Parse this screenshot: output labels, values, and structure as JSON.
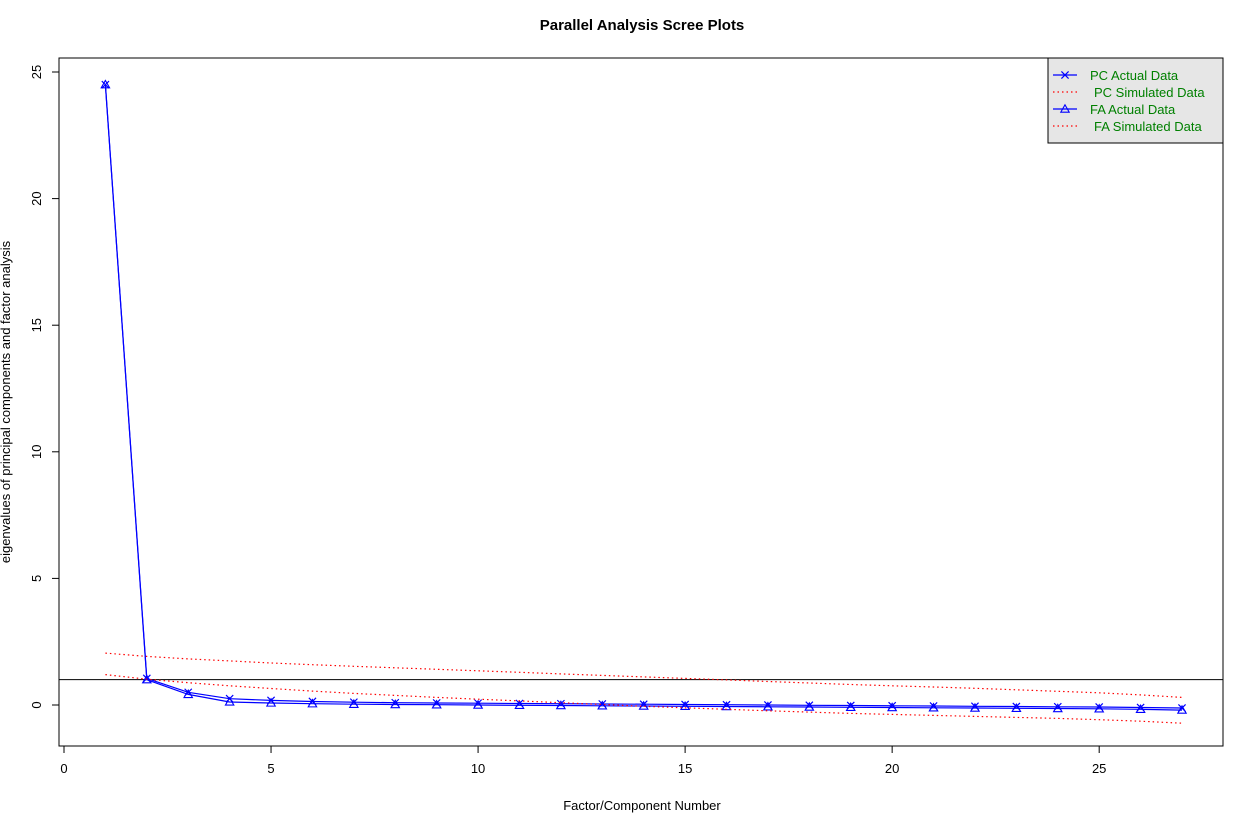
{
  "chart_data": {
    "type": "line",
    "title": "Parallel Analysis Scree Plots",
    "xlabel": "Factor/Component Number",
    "ylabel": "eigenvalues of principal components and factor analysis",
    "xlim": [
      0,
      28
    ],
    "ylim": [
      -1.6,
      25.5
    ],
    "x_ticks": [
      0,
      5,
      10,
      15,
      20,
      25
    ],
    "y_ticks": [
      0,
      5,
      10,
      15,
      20,
      25
    ],
    "reference_line_y": 1,
    "grid": false,
    "legend_position": "top-right",
    "x": [
      1,
      2,
      3,
      4,
      5,
      6,
      7,
      8,
      9,
      10,
      11,
      12,
      13,
      14,
      15,
      16,
      17,
      18,
      19,
      20,
      21,
      22,
      23,
      24,
      25,
      26,
      27
    ],
    "series": [
      {
        "name": "PC  Actual Data",
        "color": "#0000ff",
        "line_style": "solid",
        "marker": "x",
        "values": [
          24.5,
          1.05,
          0.5,
          0.25,
          0.18,
          0.14,
          0.11,
          0.09,
          0.08,
          0.07,
          0.06,
          0.05,
          0.04,
          0.03,
          0.02,
          0.01,
          0.0,
          -0.01,
          -0.02,
          -0.03,
          -0.04,
          -0.05,
          -0.06,
          -0.07,
          -0.08,
          -0.1,
          -0.12
        ]
      },
      {
        "name": "PC  Simulated Data",
        "color": "#ff0000",
        "line_style": "dotted",
        "marker": "none",
        "values": [
          2.05,
          1.92,
          1.82,
          1.74,
          1.66,
          1.59,
          1.53,
          1.47,
          1.41,
          1.35,
          1.29,
          1.23,
          1.17,
          1.11,
          1.05,
          0.99,
          0.93,
          0.87,
          0.81,
          0.76,
          0.71,
          0.66,
          0.6,
          0.54,
          0.48,
          0.4,
          0.3
        ]
      },
      {
        "name": "FA  Actual Data",
        "color": "#0000ff",
        "line_style": "solid",
        "marker": "triangle",
        "values": [
          24.5,
          1.0,
          0.42,
          0.12,
          0.08,
          0.05,
          0.03,
          0.02,
          0.01,
          0.0,
          -0.01,
          -0.02,
          -0.03,
          -0.04,
          -0.05,
          -0.06,
          -0.07,
          -0.08,
          -0.09,
          -0.1,
          -0.11,
          -0.12,
          -0.13,
          -0.14,
          -0.15,
          -0.17,
          -0.2
        ]
      },
      {
        "name": "FA  Simulated Data",
        "color": "#ff0000",
        "line_style": "dotted",
        "marker": "none",
        "values": [
          1.2,
          1.02,
          0.88,
          0.76,
          0.65,
          0.55,
          0.46,
          0.38,
          0.3,
          0.23,
          0.16,
          0.09,
          0.02,
          -0.05,
          -0.11,
          -0.17,
          -0.23,
          -0.28,
          -0.33,
          -0.37,
          -0.41,
          -0.45,
          -0.49,
          -0.53,
          -0.58,
          -0.64,
          -0.72
        ]
      }
    ],
    "legend_label_color": "#008000",
    "legend_background": "#e6e6e6"
  }
}
